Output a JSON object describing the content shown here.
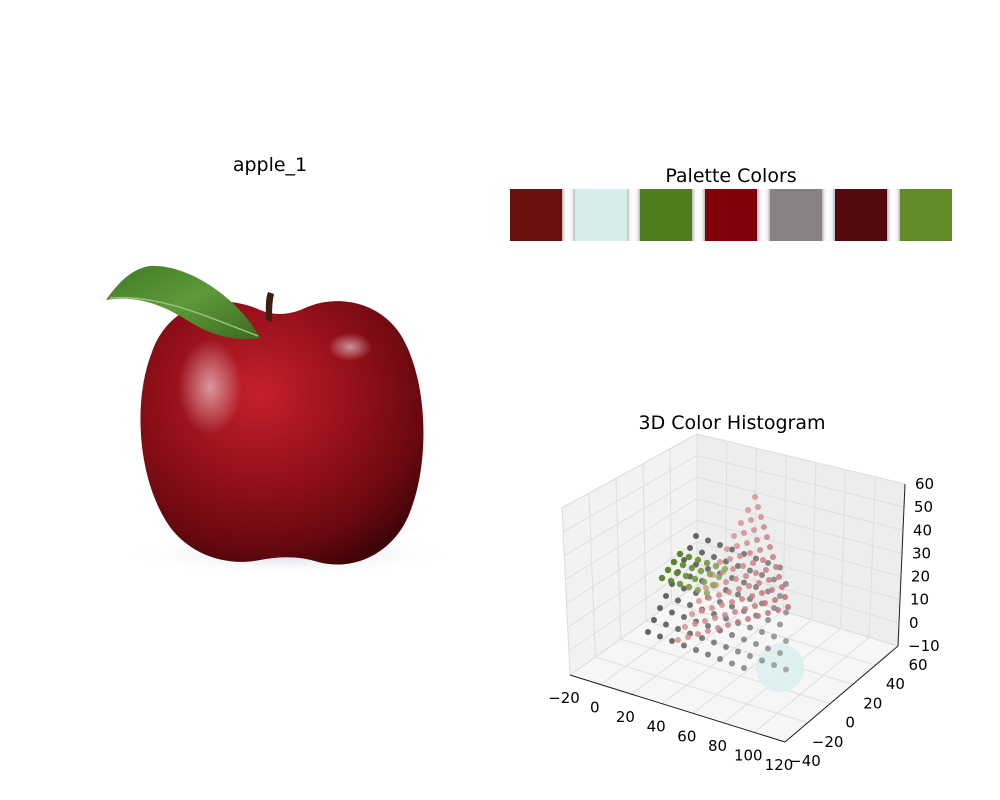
{
  "chart_data": [
    {
      "type": "image",
      "title": "apple_1",
      "subject": "red-apple-with-leaf"
    },
    {
      "type": "palette",
      "title": "Palette Colors",
      "colors": [
        "#68110b",
        "#d9ecec",
        "#507e1f",
        "#810009",
        "#8a7f84",
        "#520a0f",
        "#638c28"
      ]
    },
    {
      "type": "scatter3d",
      "title": "3D Color Histogram",
      "x_ticks": [
        "−20",
        "0",
        "20",
        "40",
        "60",
        "80",
        "100",
        "120"
      ],
      "y_ticks": [
        "−40",
        "−20",
        "0",
        "20",
        "40",
        "60"
      ],
      "z_ticks": [
        "−10",
        "0",
        "10",
        "20",
        "30",
        "40",
        "50",
        "60"
      ],
      "xlim": [
        -20,
        120
      ],
      "ylim": [
        -40,
        60
      ],
      "zlim": [
        -10,
        60
      ],
      "grid": true,
      "clusters": [
        {
          "name": "dark-gray",
          "color": "#5a5a5a",
          "center": [
            10,
            5,
            0
          ]
        },
        {
          "name": "gray-pink",
          "color": "#9a8a8e",
          "center": [
            55,
            15,
            5
          ]
        },
        {
          "name": "red-pink",
          "color": "#d58888",
          "center": [
            80,
            30,
            30
          ]
        },
        {
          "name": "green",
          "color": "#4f7d20",
          "center": [
            35,
            25,
            22
          ]
        },
        {
          "name": "light-cyan",
          "color": "#dcefee",
          "center": [
            100,
            -10,
            -5
          ]
        }
      ]
    }
  ]
}
